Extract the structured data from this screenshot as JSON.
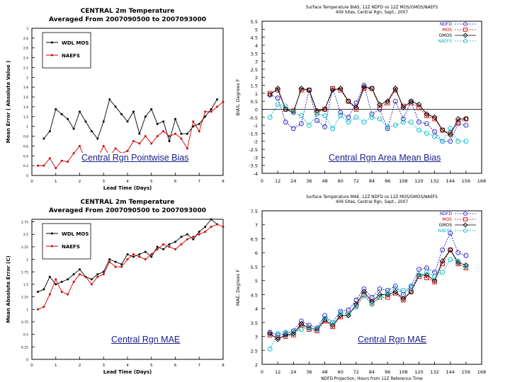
{
  "captions": {
    "tl": "Central Rgn Pointwise Bias",
    "tr": "Central Rgn Area Mean Bias",
    "bl": "Central Rgn MAE",
    "br": "Central Rgn MAE"
  },
  "chart_data": [
    {
      "type": "line",
      "title": "CENTRAL 2m Temperature",
      "subtitle": "Averaged From 2007090500 to 2007093000",
      "xlabel": "Lead Time (Days)",
      "ylabel": "Mean Error ( Absolute Value )",
      "xlim": [
        0,
        8
      ],
      "ylim": [
        0,
        3
      ],
      "xticks": [
        "0",
        "1",
        "2",
        "3",
        "4",
        "5",
        "6",
        "7",
        "8"
      ],
      "yticks": [
        "0",
        "0.2",
        "0.4",
        "0.6",
        "0.8",
        "1",
        "1.2",
        "1.4",
        "1.6",
        "1.8",
        "2",
        "2.2",
        "2.4",
        "2.6",
        "2.8",
        "3"
      ],
      "legend": [
        "WDL MOS",
        "NAEFS"
      ],
      "series": [
        {
          "name": "WDL MOS",
          "color": "#000000",
          "x": [
            0.5,
            0.75,
            1,
            1.25,
            1.5,
            1.75,
            2,
            2.25,
            2.5,
            2.75,
            3,
            3.25,
            3.5,
            3.75,
            4,
            4.25,
            4.5,
            4.75,
            5,
            5.25,
            5.5,
            5.75,
            6,
            6.25,
            6.5,
            6.75,
            7,
            7.25,
            7.5,
            7.75
          ],
          "values": [
            0.75,
            0.9,
            1.35,
            1.25,
            1.15,
            0.95,
            1.3,
            1.1,
            0.9,
            0.75,
            1.1,
            1.55,
            1.4,
            1.25,
            1.1,
            1.3,
            0.85,
            1.2,
            1.35,
            1.05,
            1.1,
            0.7,
            1.15,
            0.85,
            0.85,
            1.0,
            1.05,
            1.2,
            1.35,
            1.55
          ]
        },
        {
          "name": "NAEFS",
          "color": "#cc0000",
          "x": [
            0.25,
            0.5,
            0.75,
            1,
            1.25,
            1.5,
            1.75,
            2,
            2.25,
            2.5,
            2.75,
            3,
            3.25,
            3.5,
            3.75,
            4,
            4.25,
            4.5,
            4.75,
            5,
            5.25,
            5.5,
            5.75,
            6,
            6.25,
            6.5,
            6.75,
            7,
            7.25,
            7.5,
            7.75,
            8
          ],
          "values": [
            0.2,
            0.2,
            0.35,
            0.15,
            0.3,
            0.28,
            0.45,
            0.6,
            0.3,
            0.4,
            0.35,
            0.6,
            0.4,
            0.55,
            0.45,
            0.5,
            0.7,
            0.65,
            0.8,
            0.65,
            0.8,
            0.9,
            0.8,
            0.85,
            0.75,
            0.55,
            1.1,
            0.9,
            1.3,
            1.3,
            1.4,
            1.5
          ]
        }
      ]
    },
    {
      "type": "line",
      "title": "Surface Temperature BIAS, 12Z NDFD vs 12Z MOS/GMOS/NAEFS",
      "subtitle": "409 Sites, Central Rgn, Sept., 2007",
      "xlabel": "",
      "ylabel": "BIAS, Degrees F",
      "xlim": [
        0,
        168
      ],
      "ylim": [
        -4,
        5.5
      ],
      "xticks": [
        "0",
        "12",
        "24",
        "36",
        "48",
        "60",
        "72",
        "84",
        "96",
        "108",
        "120",
        "132",
        "144",
        "156",
        "168"
      ],
      "yticks": [
        "5.5",
        "5",
        "4.5",
        "4",
        "3.5",
        "3",
        "2.5",
        "2",
        "1.5",
        "1",
        "0.5",
        "0",
        "-0.5",
        "-1",
        "-1.5",
        "-2",
        "-2.5",
        "-3",
        "-3.5",
        "-4"
      ],
      "legend": [
        "NDFD",
        "MOS",
        "GMOS",
        "NAEFS"
      ],
      "x": [
        6,
        12,
        18,
        24,
        30,
        36,
        42,
        48,
        54,
        60,
        66,
        72,
        78,
        84,
        90,
        96,
        102,
        108,
        114,
        120,
        126,
        132,
        138,
        144,
        150,
        156
      ],
      "series": [
        {
          "name": "NDFD",
          "color": "#2020c0",
          "values": [
            0.9,
            0.7,
            -0.8,
            -1.2,
            -0.9,
            1.2,
            -0.7,
            -1.1,
            1.3,
            -0.2,
            -0.5,
            0.4,
            1.5,
            -0.3,
            0.0,
            -1.2,
            0.5,
            -0.6,
            0.5,
            -0.8,
            -0.9,
            -1.4,
            -2.0,
            -2.0,
            -0.9,
            -1.0
          ]
        },
        {
          "name": "MOS",
          "color": "#cc0000",
          "values": [
            1.0,
            1.2,
            0.0,
            -0.1,
            1.2,
            1.2,
            -0.2,
            0.0,
            1.3,
            1.2,
            0.5,
            0.0,
            1.3,
            1.3,
            0.1,
            0.4,
            1.2,
            0.2,
            0.4,
            0.1,
            -0.4,
            -0.6,
            -1.3,
            -1.5,
            -0.8,
            -0.6
          ]
        },
        {
          "name": "GMOS",
          "color": "#000000",
          "values": [
            0.9,
            1.3,
            0.0,
            -0.2,
            1.3,
            1.2,
            -0.1,
            0.0,
            1.2,
            1.3,
            0.5,
            0.1,
            1.4,
            1.3,
            0.3,
            0.5,
            1.3,
            0.1,
            0.5,
            0.3,
            -0.3,
            -0.5,
            -1.3,
            -1.6,
            -0.6,
            -0.6
          ]
        },
        {
          "name": "NAEFS",
          "color": "#00b8c8",
          "values": [
            -0.5,
            0.3,
            0.2,
            -0.2,
            -0.4,
            -1.0,
            -0.3,
            -0.4,
            -1.2,
            -0.4,
            -0.8,
            -0.5,
            -0.8,
            -0.5,
            -0.6,
            -1.1,
            -1.0,
            -0.8,
            -0.8,
            -1.3,
            -1.5,
            -1.7,
            -2.0,
            -1.2,
            -2.0,
            -2.0
          ]
        }
      ]
    },
    {
      "type": "line",
      "title": "CENTRAL 2m Temperature",
      "subtitle": "Averaged From 2007090500 to 2007093000",
      "xlabel": "Lead Time (Days)",
      "ylabel": "Mean Absolute Error (C)",
      "xlim": [
        0,
        8
      ],
      "ylim": [
        0,
        2.8
      ],
      "xticks": [
        "0",
        "1",
        "2",
        "3",
        "4",
        "5",
        "6",
        "7",
        "8"
      ],
      "yticks": [
        "0",
        "0.25",
        "0.5",
        "0.75",
        "1",
        "1.25",
        "1.5",
        "1.75",
        "2",
        "2.25",
        "2.5",
        "2.75"
      ],
      "legend": [
        "WDL MOS",
        "NAEFS"
      ],
      "series": [
        {
          "name": "WDL MOS",
          "color": "#000000",
          "x": [
            0.25,
            0.5,
            0.75,
            1,
            1.25,
            1.5,
            1.75,
            2,
            2.25,
            2.5,
            2.75,
            3,
            3.25,
            3.5,
            3.75,
            4,
            4.25,
            4.5,
            4.75,
            5,
            5.25,
            5.5,
            5.75,
            6,
            6.25,
            6.5,
            6.75,
            7,
            7.25,
            7.5,
            7.75
          ],
          "values": [
            1.35,
            1.4,
            1.65,
            1.5,
            1.55,
            1.6,
            1.7,
            1.8,
            1.65,
            1.6,
            1.7,
            1.75,
            2.0,
            1.95,
            1.9,
            2.1,
            2.05,
            2.1,
            2.15,
            2.05,
            2.25,
            2.2,
            2.3,
            2.35,
            2.45,
            2.5,
            2.4,
            2.55,
            2.65,
            2.8,
            2.7
          ]
        },
        {
          "name": "NAEFS",
          "color": "#cc0000",
          "x": [
            0.25,
            0.5,
            0.75,
            1,
            1.25,
            1.5,
            1.75,
            2,
            2.25,
            2.5,
            2.75,
            3,
            3.25,
            3.5,
            3.75,
            4,
            4.25,
            4.5,
            4.75,
            5,
            5.25,
            5.5,
            5.75,
            6,
            6.25,
            6.5,
            6.75,
            7,
            7.25,
            7.5,
            7.75,
            8
          ],
          "values": [
            1.0,
            1.05,
            1.3,
            1.6,
            1.35,
            1.3,
            1.55,
            1.7,
            1.65,
            1.5,
            1.65,
            1.7,
            1.95,
            1.85,
            1.85,
            2.0,
            2.1,
            2.05,
            2.0,
            2.1,
            2.2,
            2.3,
            2.25,
            2.2,
            2.3,
            2.4,
            2.45,
            2.5,
            2.55,
            2.65,
            2.7,
            2.65
          ]
        }
      ]
    },
    {
      "type": "line",
      "title": "Surface Temperature MAE, 12Z NDFD vs 12Z MOS/GMOS/NAEFS",
      "subtitle": "409 Sites, Central Rgn, Sept., 2007",
      "xlabel": "NDFD Projection, Hours from 12Z Reference Time",
      "ylabel": "MAE, Degrees F",
      "xlim": [
        0,
        168
      ],
      "ylim": [
        2,
        7.5
      ],
      "xticks": [
        "0",
        "12",
        "24",
        "36",
        "48",
        "60",
        "72",
        "84",
        "96",
        "108",
        "120",
        "132",
        "144",
        "156",
        "168"
      ],
      "yticks": [
        "2",
        "2.5",
        "3",
        "3.5",
        "4",
        "4.5",
        "5",
        "5.5",
        "6",
        "6.5",
        "7",
        "7.5"
      ],
      "legend": [
        "NDFD",
        "MOS",
        "GMOS",
        "NAEFS"
      ],
      "x": [
        6,
        12,
        18,
        24,
        30,
        36,
        42,
        48,
        54,
        60,
        66,
        72,
        78,
        84,
        90,
        96,
        102,
        108,
        114,
        120,
        126,
        132,
        138,
        144,
        150,
        156
      ],
      "series": [
        {
          "name": "NDFD",
          "color": "#2020c0",
          "values": [
            3.15,
            3.05,
            3.1,
            3.2,
            3.55,
            3.4,
            3.3,
            3.75,
            3.5,
            3.9,
            3.95,
            4.3,
            4.7,
            4.4,
            4.7,
            4.65,
            4.8,
            4.5,
            4.8,
            5.4,
            5.45,
            5.3,
            6.1,
            6.7,
            6.0,
            5.9
          ]
        },
        {
          "name": "MOS",
          "color": "#cc0000",
          "values": [
            3.05,
            2.95,
            3.0,
            3.05,
            3.4,
            3.25,
            3.2,
            3.55,
            3.35,
            3.7,
            3.8,
            4.1,
            4.5,
            4.2,
            4.4,
            4.4,
            4.55,
            4.3,
            4.6,
            5.15,
            5.1,
            4.95,
            5.6,
            6.1,
            5.6,
            5.45
          ]
        },
        {
          "name": "GMOS",
          "color": "#000000",
          "values": [
            3.1,
            2.9,
            3.05,
            3.1,
            3.45,
            3.3,
            3.25,
            3.6,
            3.4,
            3.75,
            3.75,
            4.15,
            4.6,
            4.25,
            4.5,
            4.5,
            4.6,
            4.35,
            4.6,
            5.2,
            5.2,
            5.0,
            5.7,
            6.1,
            5.65,
            5.55
          ]
        },
        {
          "name": "NAEFS",
          "color": "#00b8c8",
          "values": [
            2.55,
            3.1,
            3.15,
            3.15,
            3.25,
            3.3,
            3.25,
            3.65,
            3.5,
            3.85,
            3.8,
            4.05,
            4.45,
            4.15,
            4.4,
            4.55,
            4.7,
            4.65,
            4.75,
            5.2,
            5.3,
            5.15,
            5.3,
            5.75,
            5.7,
            5.5
          ]
        }
      ]
    }
  ]
}
